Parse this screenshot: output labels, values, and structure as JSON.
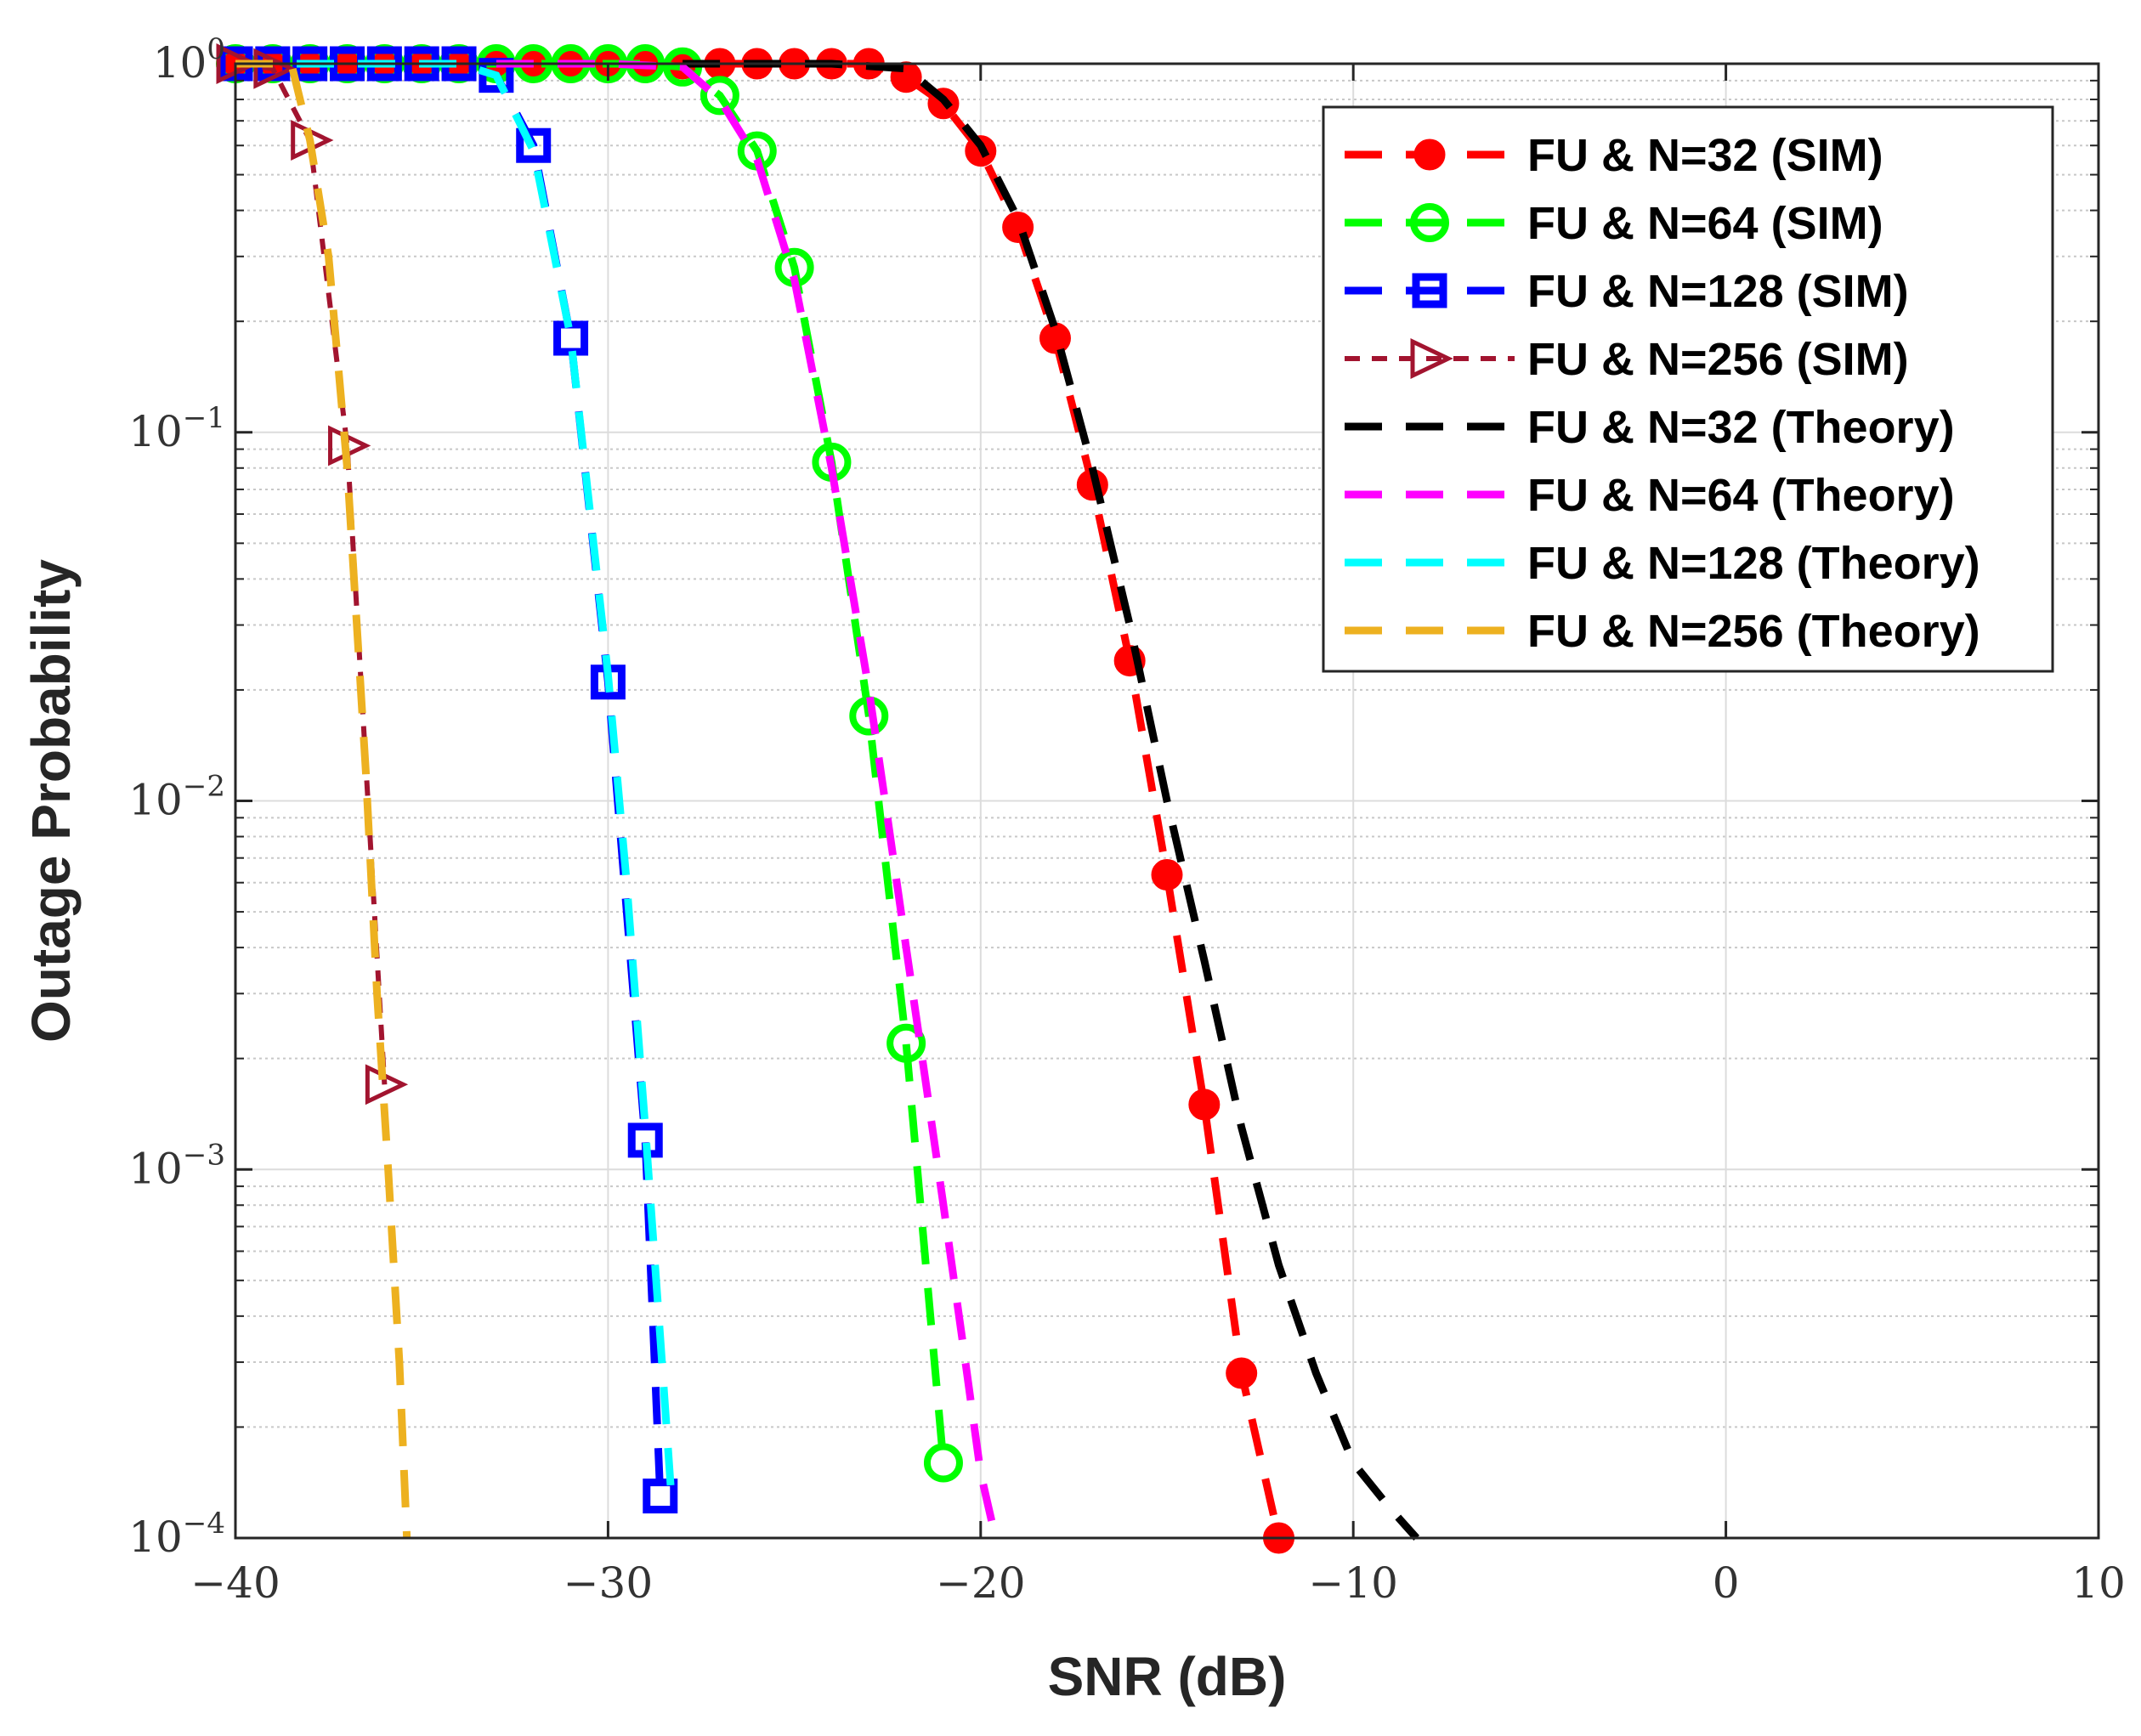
{
  "chart_data": {
    "type": "line",
    "title": "",
    "xlabel": "SNR (dB)",
    "ylabel": "Outage Probability",
    "xlim": [
      -40,
      10
    ],
    "ylim": [
      0.0001,
      1
    ],
    "yscale": "log",
    "grid": true,
    "legend_position": "top-right",
    "x_ticks": [
      -40,
      -30,
      -20,
      -10,
      0,
      10
    ],
    "x_tick_labels": [
      "−40",
      "−30",
      "−20",
      "−10",
      "0",
      "10"
    ],
    "y_ticks": [
      1,
      0.1,
      0.01,
      0.001,
      0.0001
    ],
    "y_tick_labels": [
      {
        "base": "10",
        "exp": "0"
      },
      {
        "base": "10",
        "exp": "−1"
      },
      {
        "base": "10",
        "exp": "−2"
      },
      {
        "base": "10",
        "exp": "−3"
      },
      {
        "base": "10",
        "exp": "−4"
      }
    ],
    "series": [
      {
        "name": "FU & N=32 (SIM)",
        "color": "#ff0000",
        "dash": "long",
        "marker": "filled-circle",
        "x": [
          -40,
          -39,
          -38,
          -37,
          -36,
          -35,
          -34,
          -33,
          -32,
          -31,
          -30,
          -29,
          -28,
          -27,
          -26,
          -25,
          -24,
          -23,
          -22,
          -21,
          -20,
          -19,
          -18,
          -17,
          -16,
          -15,
          -14,
          -13,
          -12
        ],
        "y": [
          1,
          1,
          1,
          1,
          1,
          1,
          1,
          1,
          1,
          1,
          1,
          1,
          1,
          1,
          1,
          1,
          1,
          1,
          0.92,
          0.78,
          0.58,
          0.36,
          0.18,
          0.072,
          0.024,
          0.0063,
          0.0015,
          0.00028,
          0.0001
        ]
      },
      {
        "name": "FU & N=64 (SIM)",
        "color": "#00ff00",
        "dash": "long",
        "marker": "open-circle",
        "x": [
          -40,
          -39,
          -38,
          -37,
          -36,
          -35,
          -34,
          -33,
          -32,
          -31,
          -30,
          -29,
          -28,
          -27,
          -26,
          -25,
          -24,
          -23,
          -22,
          -21
        ],
        "y": [
          1,
          1,
          1,
          1,
          1,
          1,
          1,
          1,
          1,
          1,
          1,
          1,
          0.98,
          0.82,
          0.58,
          0.28,
          0.083,
          0.017,
          0.0022,
          0.00016
        ]
      },
      {
        "name": "FU & N=128 (SIM)",
        "color": "#0000ff",
        "dash": "long",
        "marker": "open-square",
        "x": [
          -40,
          -39,
          -38,
          -37,
          -36,
          -35,
          -34,
          -33,
          -32,
          -31,
          -30,
          -29,
          -28.6
        ],
        "y": [
          1,
          1,
          1,
          1,
          1,
          1,
          1,
          0.93,
          0.6,
          0.18,
          0.021,
          0.0012,
          0.00013
        ]
      },
      {
        "name": "FU & N=256 (SIM)",
        "color": "#a2142f",
        "dash": "short",
        "marker": "open-triangle-right",
        "x": [
          -40,
          -39,
          -38,
          -37,
          -36
        ],
        "y": [
          1,
          0.97,
          0.62,
          0.092,
          0.0017
        ]
      },
      {
        "name": "FU & N=32 (Theory)",
        "color": "#000000",
        "dash": "long",
        "marker": "none",
        "x": [
          -28,
          -26,
          -24,
          -22,
          -21,
          -20,
          -19,
          -18,
          -17,
          -16,
          -15,
          -14,
          -13,
          -12,
          -11,
          -10,
          -9,
          -8.3
        ],
        "y": [
          1,
          1,
          1,
          0.97,
          0.8,
          0.6,
          0.38,
          0.19,
          0.08,
          0.03,
          0.01,
          0.0037,
          0.0013,
          0.00055,
          0.00028,
          0.00016,
          0.00012,
          0.0001
        ]
      },
      {
        "name": "FU & N=64 (Theory)",
        "color": "#ff00ff",
        "dash": "long",
        "marker": "none",
        "x": [
          -33,
          -30,
          -28,
          -27,
          -26,
          -25,
          -24,
          -23,
          -22.5,
          -22,
          -21.5,
          -21,
          -20.5,
          -20,
          -19.6
        ],
        "y": [
          1,
          1,
          0.98,
          0.8,
          0.55,
          0.26,
          0.08,
          0.02,
          0.009,
          0.004,
          0.0018,
          0.0008,
          0.00035,
          0.00015,
          0.0001
        ]
      },
      {
        "name": "FU & N=128 (Theory)",
        "color": "#00ffff",
        "dash": "long",
        "marker": "none",
        "x": [
          -40,
          -34,
          -33,
          -32,
          -31,
          -30,
          -29.5,
          -29,
          -28.6,
          -28.3
        ],
        "y": [
          1,
          1,
          0.93,
          0.58,
          0.18,
          0.022,
          0.006,
          0.0013,
          0.00035,
          0.00013
        ]
      },
      {
        "name": "FU & N=256 (Theory)",
        "color": "#edb120",
        "dash": "long",
        "marker": "none",
        "x": [
          -40,
          -38.5,
          -38,
          -37.5,
          -37,
          -36.5,
          -36.2,
          -35.9,
          -35.6,
          -35.4
        ],
        "y": [
          1,
          1,
          0.62,
          0.3,
          0.08,
          0.012,
          0.003,
          0.001,
          0.0003,
          0.0001
        ]
      }
    ]
  }
}
